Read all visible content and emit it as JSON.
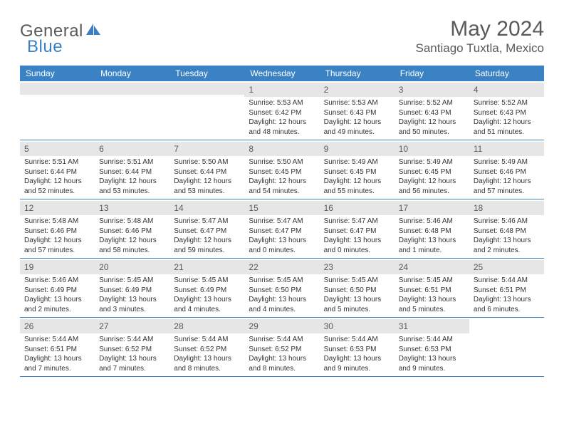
{
  "logo": {
    "text1": "General",
    "text2": "Blue"
  },
  "title": "May 2024",
  "location": "Santiago Tuxtla, Mexico",
  "colors": {
    "header_bg": "#3b82c4",
    "header_text": "#ffffff",
    "daynum_bg": "#e6e6e6",
    "border": "#3b82c4",
    "text": "#333333",
    "muted": "#5a5a5a",
    "logo_blue": "#3a7fc4"
  },
  "weekdays": [
    "Sunday",
    "Monday",
    "Tuesday",
    "Wednesday",
    "Thursday",
    "Friday",
    "Saturday"
  ],
  "weeks": [
    [
      {
        "n": "",
        "sr": "",
        "ss": "",
        "dl": ""
      },
      {
        "n": "",
        "sr": "",
        "ss": "",
        "dl": ""
      },
      {
        "n": "",
        "sr": "",
        "ss": "",
        "dl": ""
      },
      {
        "n": "1",
        "sr": "Sunrise: 5:53 AM",
        "ss": "Sunset: 6:42 PM",
        "dl": "Daylight: 12 hours and 48 minutes."
      },
      {
        "n": "2",
        "sr": "Sunrise: 5:53 AM",
        "ss": "Sunset: 6:43 PM",
        "dl": "Daylight: 12 hours and 49 minutes."
      },
      {
        "n": "3",
        "sr": "Sunrise: 5:52 AM",
        "ss": "Sunset: 6:43 PM",
        "dl": "Daylight: 12 hours and 50 minutes."
      },
      {
        "n": "4",
        "sr": "Sunrise: 5:52 AM",
        "ss": "Sunset: 6:43 PM",
        "dl": "Daylight: 12 hours and 51 minutes."
      }
    ],
    [
      {
        "n": "5",
        "sr": "Sunrise: 5:51 AM",
        "ss": "Sunset: 6:44 PM",
        "dl": "Daylight: 12 hours and 52 minutes."
      },
      {
        "n": "6",
        "sr": "Sunrise: 5:51 AM",
        "ss": "Sunset: 6:44 PM",
        "dl": "Daylight: 12 hours and 53 minutes."
      },
      {
        "n": "7",
        "sr": "Sunrise: 5:50 AM",
        "ss": "Sunset: 6:44 PM",
        "dl": "Daylight: 12 hours and 53 minutes."
      },
      {
        "n": "8",
        "sr": "Sunrise: 5:50 AM",
        "ss": "Sunset: 6:45 PM",
        "dl": "Daylight: 12 hours and 54 minutes."
      },
      {
        "n": "9",
        "sr": "Sunrise: 5:49 AM",
        "ss": "Sunset: 6:45 PM",
        "dl": "Daylight: 12 hours and 55 minutes."
      },
      {
        "n": "10",
        "sr": "Sunrise: 5:49 AM",
        "ss": "Sunset: 6:45 PM",
        "dl": "Daylight: 12 hours and 56 minutes."
      },
      {
        "n": "11",
        "sr": "Sunrise: 5:49 AM",
        "ss": "Sunset: 6:46 PM",
        "dl": "Daylight: 12 hours and 57 minutes."
      }
    ],
    [
      {
        "n": "12",
        "sr": "Sunrise: 5:48 AM",
        "ss": "Sunset: 6:46 PM",
        "dl": "Daylight: 12 hours and 57 minutes."
      },
      {
        "n": "13",
        "sr": "Sunrise: 5:48 AM",
        "ss": "Sunset: 6:46 PM",
        "dl": "Daylight: 12 hours and 58 minutes."
      },
      {
        "n": "14",
        "sr": "Sunrise: 5:47 AM",
        "ss": "Sunset: 6:47 PM",
        "dl": "Daylight: 12 hours and 59 minutes."
      },
      {
        "n": "15",
        "sr": "Sunrise: 5:47 AM",
        "ss": "Sunset: 6:47 PM",
        "dl": "Daylight: 13 hours and 0 minutes."
      },
      {
        "n": "16",
        "sr": "Sunrise: 5:47 AM",
        "ss": "Sunset: 6:47 PM",
        "dl": "Daylight: 13 hours and 0 minutes."
      },
      {
        "n": "17",
        "sr": "Sunrise: 5:46 AM",
        "ss": "Sunset: 6:48 PM",
        "dl": "Daylight: 13 hours and 1 minute."
      },
      {
        "n": "18",
        "sr": "Sunrise: 5:46 AM",
        "ss": "Sunset: 6:48 PM",
        "dl": "Daylight: 13 hours and 2 minutes."
      }
    ],
    [
      {
        "n": "19",
        "sr": "Sunrise: 5:46 AM",
        "ss": "Sunset: 6:49 PM",
        "dl": "Daylight: 13 hours and 2 minutes."
      },
      {
        "n": "20",
        "sr": "Sunrise: 5:45 AM",
        "ss": "Sunset: 6:49 PM",
        "dl": "Daylight: 13 hours and 3 minutes."
      },
      {
        "n": "21",
        "sr": "Sunrise: 5:45 AM",
        "ss": "Sunset: 6:49 PM",
        "dl": "Daylight: 13 hours and 4 minutes."
      },
      {
        "n": "22",
        "sr": "Sunrise: 5:45 AM",
        "ss": "Sunset: 6:50 PM",
        "dl": "Daylight: 13 hours and 4 minutes."
      },
      {
        "n": "23",
        "sr": "Sunrise: 5:45 AM",
        "ss": "Sunset: 6:50 PM",
        "dl": "Daylight: 13 hours and 5 minutes."
      },
      {
        "n": "24",
        "sr": "Sunrise: 5:45 AM",
        "ss": "Sunset: 6:51 PM",
        "dl": "Daylight: 13 hours and 5 minutes."
      },
      {
        "n": "25",
        "sr": "Sunrise: 5:44 AM",
        "ss": "Sunset: 6:51 PM",
        "dl": "Daylight: 13 hours and 6 minutes."
      }
    ],
    [
      {
        "n": "26",
        "sr": "Sunrise: 5:44 AM",
        "ss": "Sunset: 6:51 PM",
        "dl": "Daylight: 13 hours and 7 minutes."
      },
      {
        "n": "27",
        "sr": "Sunrise: 5:44 AM",
        "ss": "Sunset: 6:52 PM",
        "dl": "Daylight: 13 hours and 7 minutes."
      },
      {
        "n": "28",
        "sr": "Sunrise: 5:44 AM",
        "ss": "Sunset: 6:52 PM",
        "dl": "Daylight: 13 hours and 8 minutes."
      },
      {
        "n": "29",
        "sr": "Sunrise: 5:44 AM",
        "ss": "Sunset: 6:52 PM",
        "dl": "Daylight: 13 hours and 8 minutes."
      },
      {
        "n": "30",
        "sr": "Sunrise: 5:44 AM",
        "ss": "Sunset: 6:53 PM",
        "dl": "Daylight: 13 hours and 9 minutes."
      },
      {
        "n": "31",
        "sr": "Sunrise: 5:44 AM",
        "ss": "Sunset: 6:53 PM",
        "dl": "Daylight: 13 hours and 9 minutes."
      },
      {
        "n": "",
        "sr": "",
        "ss": "",
        "dl": ""
      }
    ]
  ]
}
